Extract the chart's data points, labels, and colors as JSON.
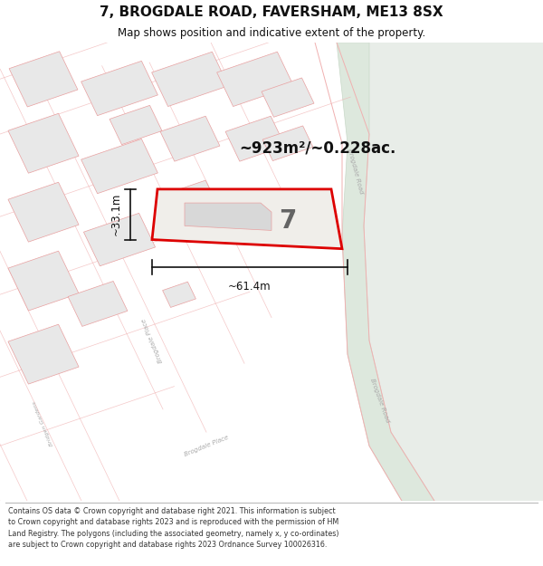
{
  "title_line1": "7, BROGDALE ROAD, FAVERSHAM, ME13 8SX",
  "title_line2": "Map shows position and indicative extent of the property.",
  "footer_text": "Contains OS data © Crown copyright and database right 2021. This information is subject to Crown copyright and database rights 2023 and is reproduced with the permission of HM Land Registry. The polygons (including the associated geometry, namely x, y co-ordinates) are subject to Crown copyright and database rights 2023 Ordnance Survey 100026316.",
  "area_text": "~923m²/~0.228ac.",
  "dimension_width": "~61.4m",
  "dimension_height": "~33.1m",
  "property_number": "7",
  "map_bg": "#ffffff",
  "road_bg": "#ffffff",
  "building_fill": "#e8e8e8",
  "building_outline": "#e8a0a0",
  "road_line": "#f0b0b0",
  "property_outline_color": "#dd0000",
  "property_fill": "#f0eeea",
  "dim_line_color": "#111111",
  "text_color": "#111111",
  "road_label_color": "#aaaaaa",
  "footer_bg": "#ffffff",
  "green_area": "#e8f0e8",
  "road_strip_color": "#e8e8e8",
  "figsize": [
    6.0,
    6.25
  ],
  "dpi": 100
}
